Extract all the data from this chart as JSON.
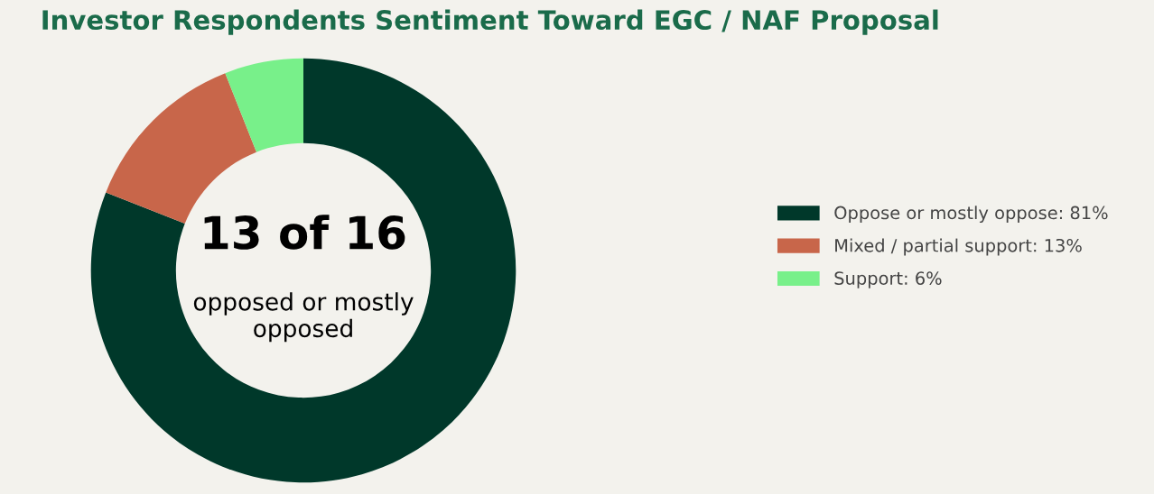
{
  "chart_data": {
    "type": "donut",
    "title": "Investor Respondents Sentiment Toward EGC / NAF Proposal",
    "categories": [
      "Oppose or mostly oppose: 81%",
      "Mixed / partial support: 13%",
      "Support: 6%"
    ],
    "values": [
      81,
      13,
      6
    ],
    "colors": [
      "#00382a",
      "#c8664a",
      "#78f08a"
    ],
    "annotations": [
      "13 of 16",
      "opposed or mostly\nopposed"
    ],
    "legend": "right"
  }
}
